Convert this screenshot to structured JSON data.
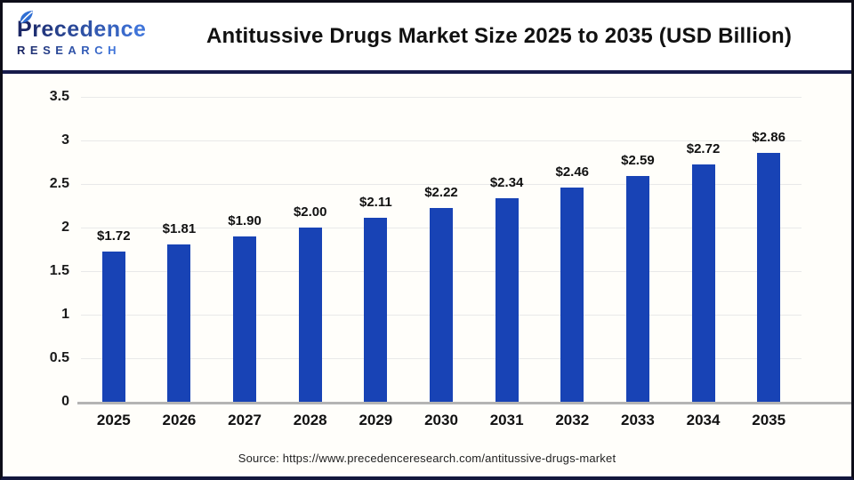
{
  "header": {
    "title": "Antitussive Drugs Market Size 2025 to 2035 (USD Billion)",
    "logo": {
      "name": "Precedence",
      "subname": "RESEARCH",
      "gradient_from": "#1b2766",
      "gradient_to": "#3f74d9",
      "leaf_color": "#2f6ed3",
      "leaf_dark": "#1b2766"
    }
  },
  "chart_data": {
    "type": "bar",
    "title": "Antitussive Drugs Market Size 2025 to 2035 (USD Billion)",
    "categories": [
      "2025",
      "2026",
      "2027",
      "2028",
      "2029",
      "2030",
      "2031",
      "2032",
      "2033",
      "2034",
      "2035"
    ],
    "values": [
      1.72,
      1.81,
      1.9,
      2.0,
      2.11,
      2.22,
      2.34,
      2.46,
      2.59,
      2.72,
      2.86
    ],
    "data_labels": [
      "$1.72",
      "$1.81",
      "$1.90",
      "$2.00",
      "$2.11",
      "$2.22",
      "$2.34",
      "$2.46",
      "$2.59",
      "$2.72",
      "$2.86"
    ],
    "xlabel": "",
    "ylabel": "",
    "ylim": [
      0,
      3.5
    ],
    "yticks": [
      0,
      0.5,
      1,
      1.5,
      2,
      2.5,
      3,
      3.5
    ],
    "ytick_labels": [
      "0",
      "0.5",
      "1",
      "1.5",
      "2",
      "2.5",
      "3",
      "3.5"
    ],
    "grid": true,
    "legend": null,
    "bar_color": "#1843b5"
  },
  "footer": {
    "source": "Source: https://www.precedenceresearch.com/antitussive-drugs-market"
  }
}
